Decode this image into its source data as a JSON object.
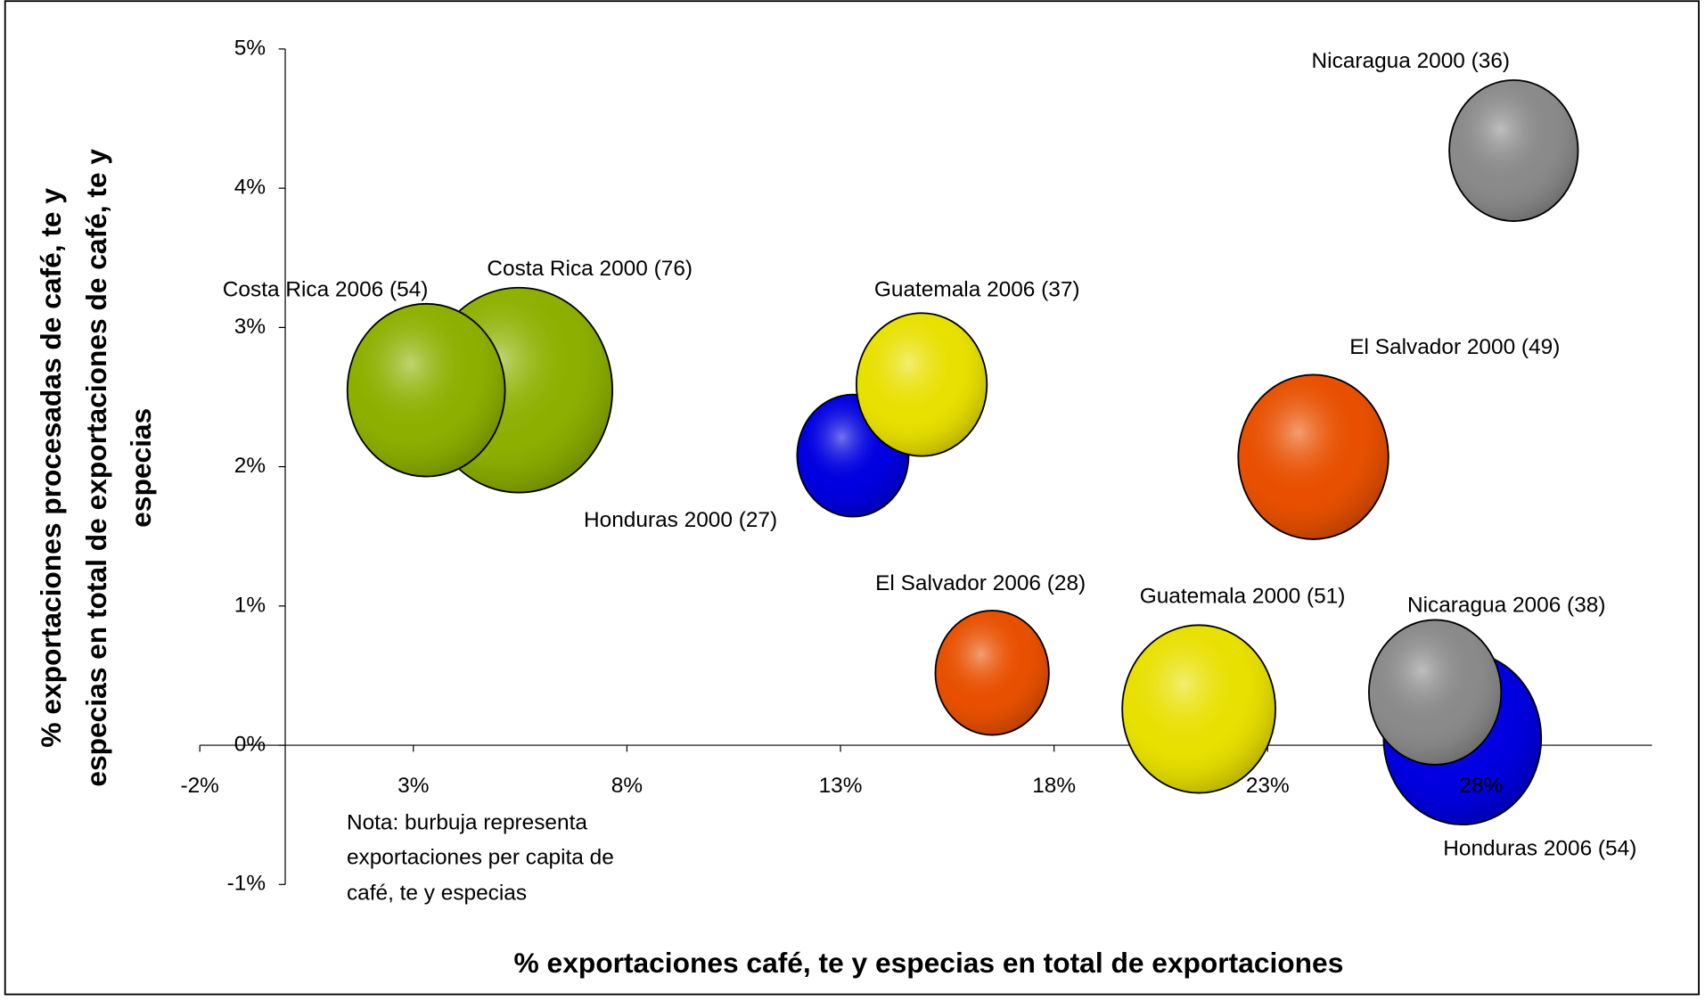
{
  "chart_data": {
    "type": "bubble",
    "x_label": "% exportaciones café, te y especias en total de exportaciones",
    "y_label": [
      "% exportaciones procesadas de café, te y",
      "especias en total de exportaciones de café, te y",
      "especias"
    ],
    "note": [
      "Nota: burbuja representa",
      "exportaciones per capita de",
      "café, te y especias"
    ],
    "xlim": [
      -2,
      32
    ],
    "ylim": [
      -1,
      5
    ],
    "xticks": [
      {
        "value": -2,
        "label": "-2%"
      },
      {
        "value": 3,
        "label": "3%"
      },
      {
        "value": 8,
        "label": "8%"
      },
      {
        "value": 13,
        "label": "13%"
      },
      {
        "value": 18,
        "label": "18%"
      },
      {
        "value": 23,
        "label": "23%"
      },
      {
        "value": 28,
        "label": "28%"
      }
    ],
    "yticks": [
      {
        "value": -1,
        "label": "-1%"
      },
      {
        "value": 0,
        "label": "0%"
      },
      {
        "value": 1,
        "label": "1%"
      },
      {
        "value": 2,
        "label": "2%"
      },
      {
        "value": 3,
        "label": "3%"
      },
      {
        "value": 4,
        "label": "4%"
      },
      {
        "value": 5,
        "label": "5%"
      }
    ],
    "points": [
      {
        "label": "Costa Rica 2000 (76)",
        "x": 5.47,
        "y": 2.55,
        "size": 76,
        "color": "#8db000"
      },
      {
        "label": "Costa Rica 2006 (54)",
        "x": 3.3,
        "y": 2.55,
        "size": 54,
        "color": "#8db000"
      },
      {
        "label": "Honduras 2000 (27)",
        "x": 13.29,
        "y": 2.08,
        "size": 27,
        "color": "#0000e0"
      },
      {
        "label": "Guatemala 2006 (37)",
        "x": 14.9,
        "y": 2.59,
        "size": 37,
        "color": "#e8e000"
      },
      {
        "label": "Nicaragua 2000 (36)",
        "x": 28.76,
        "y": 4.27,
        "size": 36,
        "color": "#8a8a8a"
      },
      {
        "label": "El Salvador 2000 (49)",
        "x": 24.07,
        "y": 2.07,
        "size": 49,
        "color": "#e85000"
      },
      {
        "label": "El Salvador 2006 (28)",
        "x": 16.55,
        "y": 0.52,
        "size": 28,
        "color": "#e85000"
      },
      {
        "label": "Guatemala 2000 (51)",
        "x": 21.39,
        "y": 0.26,
        "size": 51,
        "color": "#e8e000"
      },
      {
        "label": "Honduras 2006 (54)",
        "x": 27.56,
        "y": 0.05,
        "size": 54,
        "color": "#0000e0"
      },
      {
        "label": "Nicaragua 2006 (38)",
        "x": 26.92,
        "y": 0.38,
        "size": 38,
        "color": "#8a8a8a"
      }
    ]
  }
}
